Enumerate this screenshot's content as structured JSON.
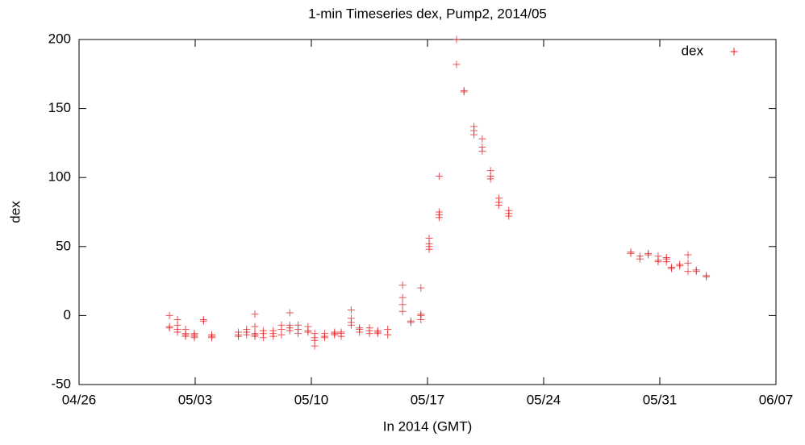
{
  "chart_data": {
    "type": "scatter",
    "title": "1-min Timeseries dex, Pump2, 2014/05",
    "x_label": "In 2014 (GMT)",
    "y_label": "dex",
    "xlim": [
      0,
      42
    ],
    "xticks": [
      {
        "value": 0,
        "label": "04/26"
      },
      {
        "value": 7,
        "label": "05/03"
      },
      {
        "value": 14,
        "label": "05/10"
      },
      {
        "value": 21,
        "label": "05/17"
      },
      {
        "value": 28,
        "label": "05/24"
      },
      {
        "value": 35,
        "label": "05/31"
      },
      {
        "value": 42,
        "label": "06/07"
      }
    ],
    "ylim": [
      -50,
      200
    ],
    "yticks": [
      -50,
      0,
      50,
      100,
      150,
      200
    ],
    "legend": "top-right",
    "series": [
      {
        "name": "dex",
        "color": "#e31a1c",
        "x": [
          5.45,
          5.45,
          5.45,
          5.93,
          5.93,
          5.93,
          5.93,
          6.42,
          6.42,
          6.42,
          6.42,
          6.95,
          6.95,
          6.95,
          6.95,
          7.5,
          7.5,
          8.0,
          8.0,
          8.0,
          9.6,
          9.6,
          9.6,
          10.1,
          10.1,
          10.1,
          10.6,
          10.6,
          10.6,
          10.6,
          10.6,
          11.1,
          11.1,
          11.1,
          11.7,
          11.7,
          11.7,
          12.2,
          12.2,
          12.2,
          12.7,
          12.7,
          12.7,
          12.7,
          13.2,
          13.2,
          13.2,
          13.8,
          13.8,
          13.8,
          14.2,
          14.2,
          14.2,
          14.2,
          14.8,
          14.8,
          14.8,
          15.4,
          15.4,
          15.4,
          15.8,
          15.8,
          15.8,
          16.4,
          16.4,
          16.4,
          16.4,
          16.9,
          16.9,
          16.9,
          17.5,
          17.5,
          17.5,
          18.0,
          18.0,
          18.0,
          18.6,
          18.6,
          19.5,
          19.5,
          19.5,
          19.5,
          20.0,
          20.0,
          20.6,
          20.6,
          20.6,
          20.6,
          21.1,
          21.1,
          21.1,
          21.1,
          21.7,
          21.7,
          21.7,
          21.7,
          22.75,
          22.75,
          23.2,
          23.2,
          23.8,
          23.8,
          23.8,
          24.3,
          24.3,
          24.3,
          24.8,
          24.8,
          24.8,
          25.3,
          25.3,
          25.3,
          25.9,
          25.9,
          25.9,
          33.25,
          33.25,
          33.8,
          33.8,
          34.3,
          34.3,
          34.9,
          34.9,
          34.9,
          35.4,
          35.4,
          35.4,
          35.7,
          35.7,
          36.2,
          36.2,
          36.7,
          36.7,
          36.7,
          37.2,
          37.2,
          37.8,
          37.8
        ],
        "values": [
          0,
          -9,
          -8,
          -3,
          -7,
          -12,
          -10,
          -13,
          -15,
          -10,
          -14,
          -14,
          -16,
          -13,
          -15,
          -3,
          -4,
          -14,
          -16,
          -15,
          -12,
          -14,
          -15,
          -12,
          -14,
          -10,
          1,
          -8,
          -13,
          -15,
          -14,
          -16,
          -11,
          -13,
          -13,
          -11,
          -15,
          -14,
          -10,
          -7,
          2,
          -9,
          -11,
          -7,
          -10,
          -13,
          -7,
          -8,
          -11,
          -12,
          -16,
          -22,
          -13,
          -18,
          -15,
          -13,
          -16,
          -13,
          -12,
          -14,
          -15,
          -13,
          -12,
          4,
          -2,
          -5,
          -7,
          -12,
          -9,
          -10,
          -11,
          -9,
          -13,
          -13,
          -12,
          -11,
          -10,
          -14,
          22,
          13,
          8,
          3,
          -4,
          -5,
          20,
          1,
          0,
          -3,
          56,
          52,
          50,
          48,
          101,
          75,
          73,
          71,
          200,
          182,
          163,
          162,
          137,
          134,
          131,
          128,
          122,
          119,
          105,
          101,
          99,
          85,
          82,
          80,
          76,
          74,
          72,
          46,
          45,
          43,
          41,
          45,
          44,
          43,
          40,
          39,
          42,
          41,
          39,
          35,
          34,
          37,
          36,
          44,
          38,
          32,
          33,
          32,
          29,
          28
        ]
      }
    ]
  }
}
